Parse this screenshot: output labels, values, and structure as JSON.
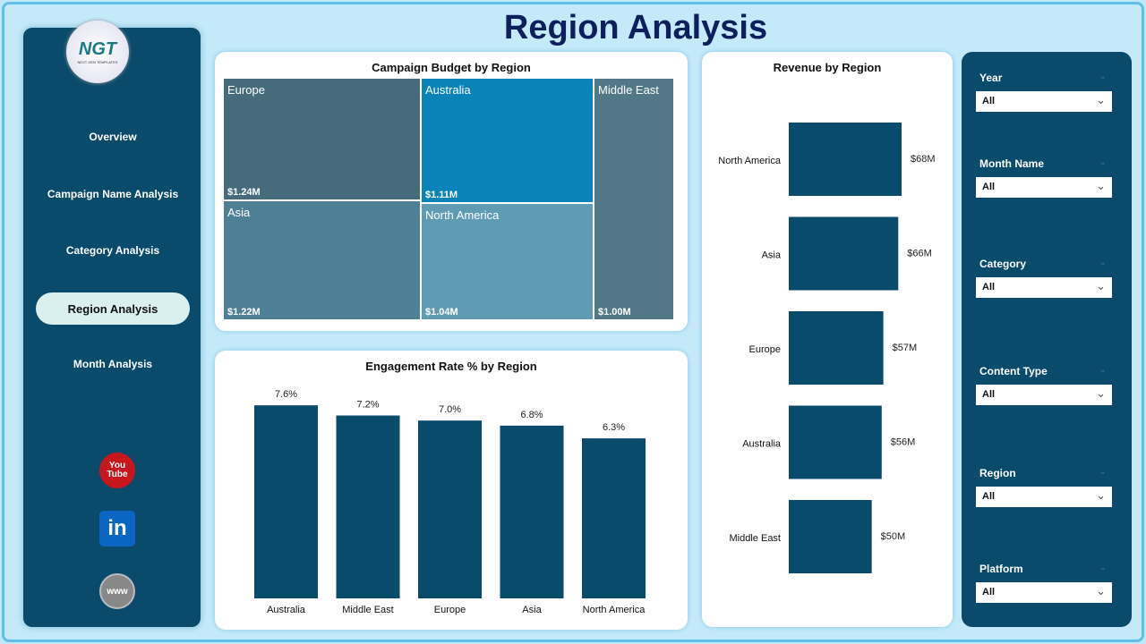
{
  "title": "Region Analysis",
  "logo": {
    "text": "NGT",
    "tagline": "NEXT GEN TEMPLATES"
  },
  "nav": [
    {
      "label": "Overview"
    },
    {
      "label": "Campaign Name Analysis"
    },
    {
      "label": "Category Analysis"
    },
    {
      "label": "Region Analysis",
      "active": true
    },
    {
      "label": "Month Analysis"
    }
  ],
  "social": [
    {
      "icon": "youtube-icon",
      "label": "You Tube"
    },
    {
      "icon": "linkedin-icon",
      "label": "in"
    },
    {
      "icon": "website-icon",
      "label": "www"
    }
  ],
  "colors": {
    "bar": "#084b6b",
    "panel": "#0a4a6b",
    "background": "#c4eafa"
  },
  "chart_data": [
    {
      "type": "treemap",
      "title": "Campaign Budget by Region",
      "items": [
        {
          "label": "Europe",
          "value": 1.24,
          "display": "$1.24M",
          "color": "#466c7c"
        },
        {
          "label": "Australia",
          "value": 1.11,
          "display": "$1.11M",
          "color": "#0a84b8"
        },
        {
          "label": "Middle East",
          "value": 1.0,
          "display": "$1.00M",
          "color": "#527888"
        },
        {
          "label": "Asia",
          "value": 1.22,
          "display": "$1.22M",
          "color": "#4f7f94"
        },
        {
          "label": "North America",
          "value": 1.04,
          "display": "$1.04M",
          "color": "#5f9bb3"
        }
      ]
    },
    {
      "type": "bar",
      "title": "Engagement Rate % by Region",
      "categories": [
        "Australia",
        "Middle East",
        "Europe",
        "Asia",
        "North America"
      ],
      "values": [
        7.6,
        7.2,
        7.0,
        6.8,
        6.3
      ],
      "labels": [
        "7.6%",
        "7.2%",
        "7.0%",
        "6.8%",
        "6.3%"
      ]
    },
    {
      "type": "bar",
      "orientation": "horizontal",
      "title": "Revenue by Region",
      "categories": [
        "North America",
        "Asia",
        "Europe",
        "Australia",
        "Middle East"
      ],
      "values": [
        68,
        66,
        57,
        56,
        50
      ],
      "labels": [
        "$68M",
        "$66M",
        "$57M",
        "$56M",
        "$50M"
      ]
    }
  ],
  "filters": [
    {
      "label": "Year",
      "value": "All"
    },
    {
      "label": "Month Name",
      "value": "All"
    },
    {
      "label": "Category",
      "value": "All"
    },
    {
      "label": "Content Type",
      "value": "All"
    },
    {
      "label": "Region",
      "value": "All"
    },
    {
      "label": "Platform",
      "value": "All"
    }
  ]
}
